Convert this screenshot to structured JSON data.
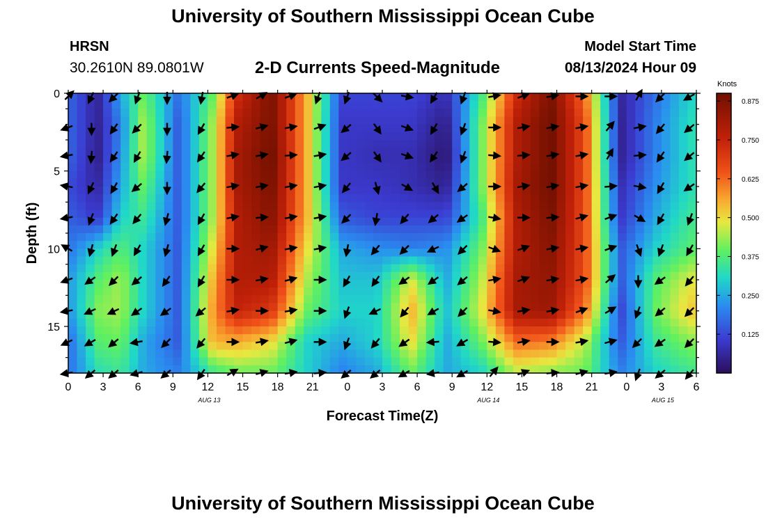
{
  "header": {
    "title": "University of Southern Mississippi Ocean Cube",
    "station": "HRSN",
    "coordinates": "30.2610N  89.0801W",
    "plot_title": "2-D Currents Speed-Magnitude",
    "model_label": "Model Start Time",
    "model_time": "08/13/2024 Hour 09"
  },
  "footer": {
    "title": "University of Southern Mississippi Ocean Cube"
  },
  "chart_data": {
    "type": "heatmap",
    "title": "2-D Currents Speed-Magnitude",
    "xlabel": "Forecast Time(Z)",
    "ylabel": "Depth (ft)",
    "x_range_hours": [
      0,
      54
    ],
    "y_range_ft": [
      0,
      18
    ],
    "y_inverted": true,
    "x_ticks": [
      {
        "h": 0,
        "label": "0"
      },
      {
        "h": 3,
        "label": "3"
      },
      {
        "h": 6,
        "label": "6"
      },
      {
        "h": 9,
        "label": "9"
      },
      {
        "h": 12,
        "label": "12"
      },
      {
        "h": 15,
        "label": "15"
      },
      {
        "h": 18,
        "label": "18"
      },
      {
        "h": 21,
        "label": "21"
      },
      {
        "h": 24,
        "label": "0"
      },
      {
        "h": 27,
        "label": "3"
      },
      {
        "h": 30,
        "label": "6"
      },
      {
        "h": 33,
        "label": "9"
      },
      {
        "h": 36,
        "label": "12"
      },
      {
        "h": 39,
        "label": "15"
      },
      {
        "h": 42,
        "label": "18"
      },
      {
        "h": 45,
        "label": "21"
      },
      {
        "h": 48,
        "label": "0"
      },
      {
        "h": 51,
        "label": "3"
      },
      {
        "h": 54,
        "label": "6"
      }
    ],
    "y_ticks": [
      {
        "v": 0,
        "label": "0"
      },
      {
        "v": 5,
        "label": "5"
      },
      {
        "v": 10,
        "label": "10"
      },
      {
        "v": 15,
        "label": "15"
      }
    ],
    "date_labels": [
      {
        "h": 12,
        "label": "AUG 13"
      },
      {
        "h": 36,
        "label": "AUG 14"
      },
      {
        "h": 51,
        "label": "AUG 15"
      }
    ],
    "colorbar": {
      "units": "Knots",
      "min": 0,
      "max": 0.9,
      "ticks": [
        0.125,
        0.25,
        0.375,
        0.5,
        0.625,
        0.75,
        0.875
      ],
      "tick_labels": [
        "0.125",
        "0.250",
        "0.375",
        "0.500",
        "0.625",
        "0.750",
        "0.875"
      ]
    },
    "column_hours": [
      0.5,
      2.5,
      4.5,
      6.5,
      9.5,
      12.5,
      14.5,
      17.5,
      20.5,
      23.5,
      26.5,
      29.5,
      32.5,
      35.5,
      38.5,
      41.5,
      44.5,
      47.5,
      50.5,
      53.5
    ],
    "row_depths": [
      0,
      2,
      4,
      6,
      8,
      10,
      12,
      14,
      16,
      18
    ],
    "speed_knots": [
      [
        0.15,
        0.05,
        0.25,
        0.4,
        0.18,
        0.4,
        0.72,
        0.88,
        0.55,
        0.12,
        0.12,
        0.12,
        0.08,
        0.35,
        0.72,
        0.88,
        0.6,
        0.06,
        0.18,
        0.3
      ],
      [
        0.15,
        0.05,
        0.2,
        0.45,
        0.15,
        0.45,
        0.78,
        0.88,
        0.55,
        0.1,
        0.1,
        0.1,
        0.04,
        0.4,
        0.78,
        0.9,
        0.65,
        0.05,
        0.2,
        0.32
      ],
      [
        0.15,
        0.04,
        0.22,
        0.45,
        0.15,
        0.45,
        0.8,
        0.9,
        0.55,
        0.1,
        0.08,
        0.08,
        0.02,
        0.4,
        0.78,
        0.9,
        0.65,
        0.05,
        0.2,
        0.32
      ],
      [
        0.12,
        0.06,
        0.25,
        0.4,
        0.15,
        0.45,
        0.8,
        0.88,
        0.55,
        0.1,
        0.1,
        0.08,
        0.05,
        0.4,
        0.8,
        0.9,
        0.65,
        0.08,
        0.22,
        0.32
      ],
      [
        0.15,
        0.1,
        0.3,
        0.35,
        0.15,
        0.45,
        0.78,
        0.86,
        0.55,
        0.15,
        0.12,
        0.12,
        0.12,
        0.35,
        0.78,
        0.88,
        0.65,
        0.1,
        0.25,
        0.35
      ],
      [
        0.2,
        0.3,
        0.38,
        0.3,
        0.15,
        0.5,
        0.78,
        0.82,
        0.5,
        0.25,
        0.22,
        0.2,
        0.22,
        0.4,
        0.78,
        0.86,
        0.65,
        0.15,
        0.3,
        0.38
      ],
      [
        0.25,
        0.38,
        0.44,
        0.3,
        0.15,
        0.55,
        0.78,
        0.78,
        0.45,
        0.28,
        0.28,
        0.48,
        0.25,
        0.45,
        0.8,
        0.84,
        0.65,
        0.15,
        0.38,
        0.48
      ],
      [
        0.25,
        0.42,
        0.44,
        0.3,
        0.15,
        0.58,
        0.75,
        0.7,
        0.4,
        0.3,
        0.3,
        0.55,
        0.28,
        0.48,
        0.8,
        0.82,
        0.6,
        0.12,
        0.4,
        0.52
      ],
      [
        0.2,
        0.38,
        0.4,
        0.25,
        0.15,
        0.55,
        0.55,
        0.5,
        0.3,
        0.25,
        0.3,
        0.5,
        0.25,
        0.4,
        0.62,
        0.6,
        0.45,
        0.15,
        0.35,
        0.42
      ],
      [
        0.2,
        0.32,
        0.35,
        0.25,
        0.2,
        0.35,
        0.4,
        0.4,
        0.3,
        0.2,
        0.25,
        0.4,
        0.25,
        0.3,
        0.45,
        0.42,
        0.4,
        0.2,
        0.3,
        0.35
      ]
    ],
    "vector_hours": [
      0,
      2,
      4,
      6,
      8.5,
      11.5,
      14,
      16.5,
      19,
      21.5,
      24,
      26.5,
      29,
      31.5,
      34,
      36.5,
      39,
      41.5,
      44,
      46.5,
      49,
      51,
      53.5
    ],
    "vector_depths": [
      0.2,
      2.2,
      4,
      6,
      8,
      10,
      12,
      14,
      16,
      18
    ],
    "vector_directions_deg": [
      [
        45,
        205,
        225,
        200,
        180,
        190,
        70,
        60,
        70,
        200,
        200,
        135,
        100,
        210,
        200,
        80,
        70,
        80,
        90,
        90,
        30,
        225,
        240
      ],
      [
        250,
        180,
        215,
        225,
        180,
        210,
        85,
        75,
        80,
        70,
        230,
        145,
        110,
        210,
        200,
        90,
        80,
        80,
        80,
        40,
        80,
        220,
        230
      ],
      [
        260,
        185,
        215,
        210,
        185,
        215,
        80,
        80,
        85,
        80,
        230,
        145,
        110,
        215,
        200,
        95,
        85,
        80,
        80,
        30,
        85,
        215,
        230
      ],
      [
        280,
        205,
        210,
        230,
        180,
        220,
        80,
        80,
        80,
        80,
        220,
        165,
        120,
        150,
        230,
        90,
        80,
        80,
        80,
        85,
        100,
        210,
        235
      ],
      [
        260,
        200,
        215,
        220,
        195,
        210,
        80,
        85,
        80,
        80,
        225,
        190,
        220,
        230,
        235,
        100,
        90,
        85,
        75,
        70,
        120,
        210,
        200
      ],
      [
        300,
        195,
        200,
        210,
        195,
        210,
        90,
        75,
        80,
        80,
        190,
        220,
        225,
        245,
        225,
        110,
        70,
        80,
        80,
        70,
        160,
        200,
        210
      ],
      [
        250,
        235,
        225,
        230,
        215,
        210,
        90,
        80,
        75,
        90,
        210,
        215,
        235,
        235,
        230,
        80,
        70,
        80,
        80,
        50,
        180,
        235,
        220
      ],
      [
        260,
        245,
        245,
        235,
        235,
        230,
        80,
        90,
        80,
        90,
        200,
        245,
        220,
        240,
        225,
        100,
        80,
        80,
        70,
        60,
        200,
        230,
        225
      ],
      [
        245,
        240,
        230,
        260,
        225,
        220,
        90,
        80,
        75,
        90,
        200,
        220,
        235,
        265,
        240,
        95,
        80,
        90,
        80,
        75,
        225,
        235,
        225
      ],
      [
        260,
        230,
        230,
        255,
        230,
        215,
        60,
        75,
        80,
        85,
        230,
        230,
        240,
        260,
        240,
        40,
        70,
        85,
        75,
        80,
        200,
        230,
        220
      ]
    ]
  }
}
